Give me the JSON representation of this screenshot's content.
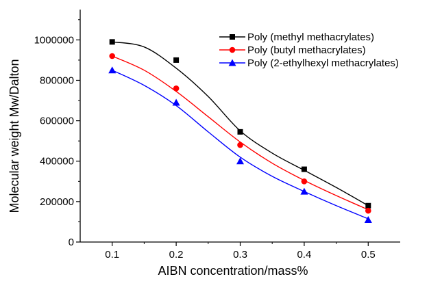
{
  "chart_data": {
    "type": "line",
    "xlabel": "AIBN concentration/mass%",
    "ylabel": "Molecular weight Mw/Dalton",
    "xlim": [
      0.05,
      0.55
    ],
    "ylim": [
      0,
      1150000
    ],
    "x_ticks": [
      "0.1",
      "0.2",
      "0.3",
      "0.4",
      "0.5"
    ],
    "y_ticks": [
      "0",
      "200000",
      "400000",
      "600000",
      "800000",
      "1000000"
    ],
    "x_tick_values": [
      0.1,
      0.2,
      0.3,
      0.4,
      0.5
    ],
    "y_tick_values": [
      0,
      200000,
      400000,
      600000,
      800000,
      1000000
    ],
    "grid": false,
    "legend_position": "top-right",
    "series": [
      {
        "name": "Poly (methyl methacrylates)",
        "color": "#000000",
        "marker": "square",
        "x": [
          0.1,
          0.2,
          0.3,
          0.4,
          0.5
        ],
        "y": [
          990000,
          900000,
          545000,
          360000,
          180000
        ],
        "fit_x": [
          0.1,
          0.15,
          0.2,
          0.25,
          0.3,
          0.35,
          0.4,
          0.45,
          0.5
        ],
        "fit_y": [
          990000,
          965000,
          860000,
          720000,
          550000,
          440000,
          355000,
          270000,
          180000
        ]
      },
      {
        "name": "Poly (butyl methacrylates)",
        "color": "#ff0000",
        "marker": "circle",
        "x": [
          0.1,
          0.2,
          0.3,
          0.4,
          0.5
        ],
        "y": [
          920000,
          760000,
          480000,
          300000,
          155000
        ],
        "fit_x": [
          0.1,
          0.15,
          0.2,
          0.25,
          0.3,
          0.35,
          0.4,
          0.45,
          0.5
        ],
        "fit_y": [
          920000,
          850000,
          745000,
          620000,
          495000,
          390000,
          305000,
          230000,
          160000
        ]
      },
      {
        "name": "Poly (2-ethylhexyl methacrylates)",
        "color": "#0000ff",
        "marker": "triangle",
        "x": [
          0.1,
          0.2,
          0.3,
          0.4,
          0.5
        ],
        "y": [
          850000,
          690000,
          400000,
          250000,
          110000
        ],
        "fit_x": [
          0.1,
          0.15,
          0.2,
          0.25,
          0.3,
          0.35,
          0.4,
          0.45,
          0.5
        ],
        "fit_y": [
          850000,
          775000,
          675000,
          545000,
          420000,
          325000,
          250000,
          180000,
          115000
        ]
      }
    ]
  }
}
